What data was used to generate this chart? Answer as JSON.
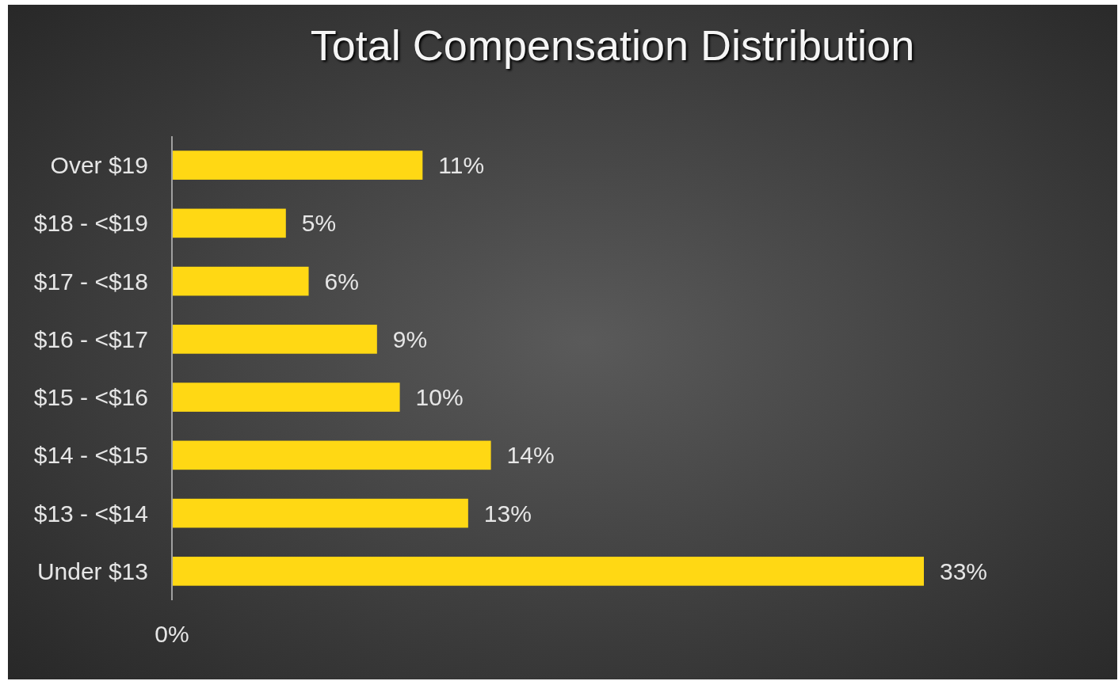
{
  "chart_data": {
    "type": "bar",
    "title": "Total Compensation Distribution",
    "orientation": "horizontal",
    "categories": [
      "Over $19",
      "$18 - <$19",
      "$17 - <$18",
      "$16 - <$17",
      "$15 - <$16",
      "$14 - <$15",
      "$13 - <$14",
      "Under $13"
    ],
    "values": [
      11,
      5,
      6,
      9,
      10,
      14,
      13,
      33
    ],
    "value_labels": [
      "11%",
      "5%",
      "6%",
      "9%",
      "10%",
      "14%",
      "13%",
      "33%"
    ],
    "color": "#ffd814",
    "annotations": [
      "0%"
    ]
  }
}
